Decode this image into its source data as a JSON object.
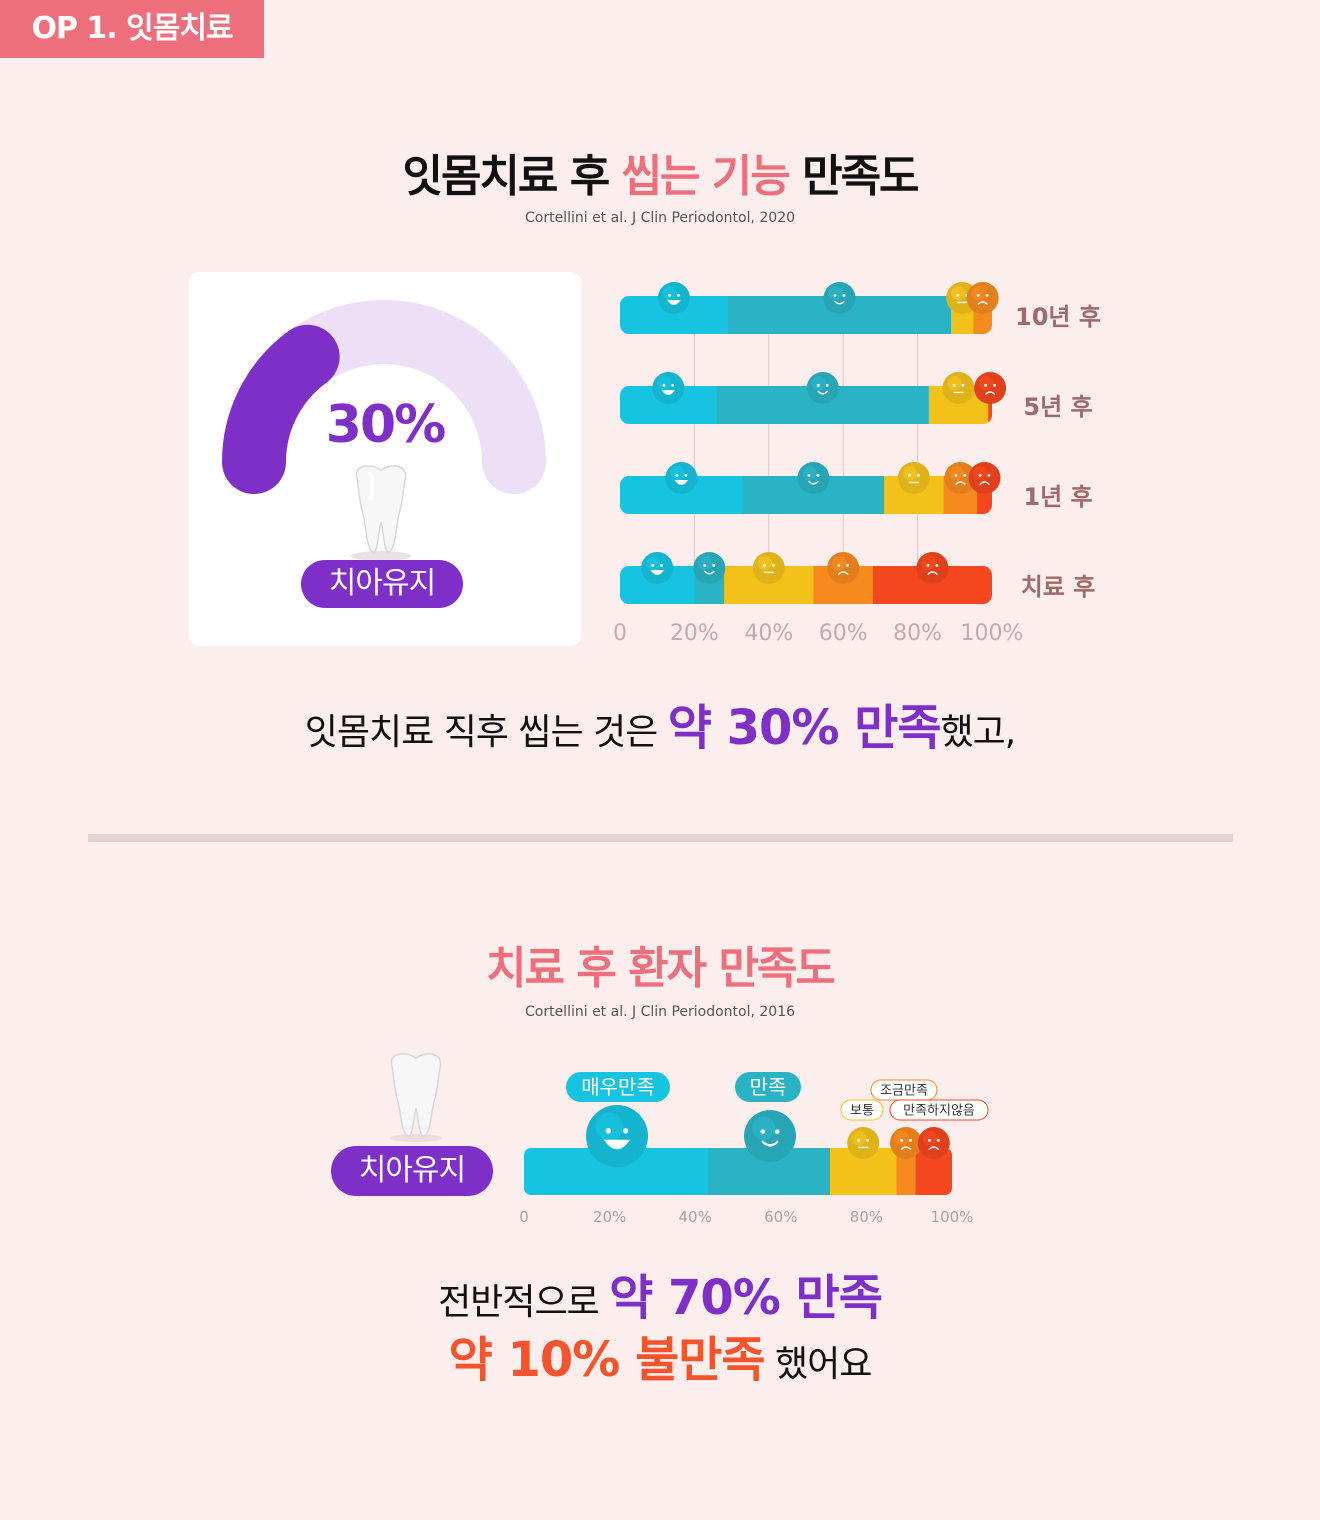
{
  "header": {
    "tag": "OP 1. 잇몸치료"
  },
  "section1": {
    "title_pre": "잇몸치료 후 ",
    "title_hl": "씹는 기능",
    "title_post": " 만족도",
    "citation": "Cortellini et al. J Clin Periodontol, 2020",
    "gauge_value": "30%",
    "gauge_label": "치아유지",
    "summary_pre": "잇몸치료 직후 씹는 것은 ",
    "summary_hl": "약 30% 만족",
    "summary_post": "했고,"
  },
  "section2": {
    "title": "치료 후 환자 만족도",
    "citation": "Cortellini et al. J Clin Periodontol, 2016",
    "tooth_label": "치아유지",
    "summary_line1_pre": "전반적으로 ",
    "summary_line1_hl": "약 70% 만족",
    "summary_line2_hl": "약 10% 불만족",
    "summary_line2_post": " 했어요"
  },
  "colors": {
    "very_satisfied": "#16c3e0",
    "satisfied": "#2ab3c5",
    "neutral": "#f2c21b",
    "slightly_dissatisfied": "#f68a1e",
    "dissatisfied": "#f4471e",
    "purple": "#7e2fc8",
    "pink": "#ee6f7c"
  },
  "chart_data": [
    {
      "type": "gauge",
      "value": 30,
      "max": 100,
      "label": "30%"
    },
    {
      "type": "bar",
      "stacked": true,
      "orientation": "horizontal",
      "categories": [
        "10년 후",
        "5년 후",
        "1년 후",
        "치료 후"
      ],
      "series": [
        {
          "key": "very_satisfied",
          "values": [
            29,
            26,
            33,
            20
          ]
        },
        {
          "key": "satisfied",
          "values": [
            60,
            57,
            38,
            8
          ]
        },
        {
          "key": "neutral",
          "values": [
            6,
            16,
            16,
            24
          ]
        },
        {
          "key": "slightly_dissatisfied",
          "values": [
            5,
            0,
            9,
            16
          ]
        },
        {
          "key": "dissatisfied",
          "values": [
            0,
            1,
            4,
            32
          ]
        }
      ],
      "xticks": [
        "0",
        "20%",
        "40%",
        "60%",
        "80%",
        "100%"
      ],
      "xlim": [
        0,
        100
      ],
      "grid": true
    },
    {
      "type": "bar",
      "stacked": true,
      "orientation": "horizontal",
      "categories": [
        "치아유지"
      ],
      "series": [
        {
          "key": "very_satisfied",
          "name": "매우만족",
          "values": [
            43
          ]
        },
        {
          "key": "satisfied",
          "name": "만족",
          "values": [
            28.5
          ]
        },
        {
          "key": "neutral",
          "name": "보통",
          "values": [
            15.5
          ]
        },
        {
          "key": "slightly_dissatisfied",
          "name": "조금만족",
          "values": [
            4.5
          ]
        },
        {
          "key": "dissatisfied",
          "name": "만족하지않음",
          "values": [
            8.5
          ]
        }
      ],
      "xticks": [
        "0",
        "20%",
        "40%",
        "60%",
        "80%",
        "100%"
      ],
      "xlim": [
        0,
        100
      ],
      "grid": false
    }
  ]
}
